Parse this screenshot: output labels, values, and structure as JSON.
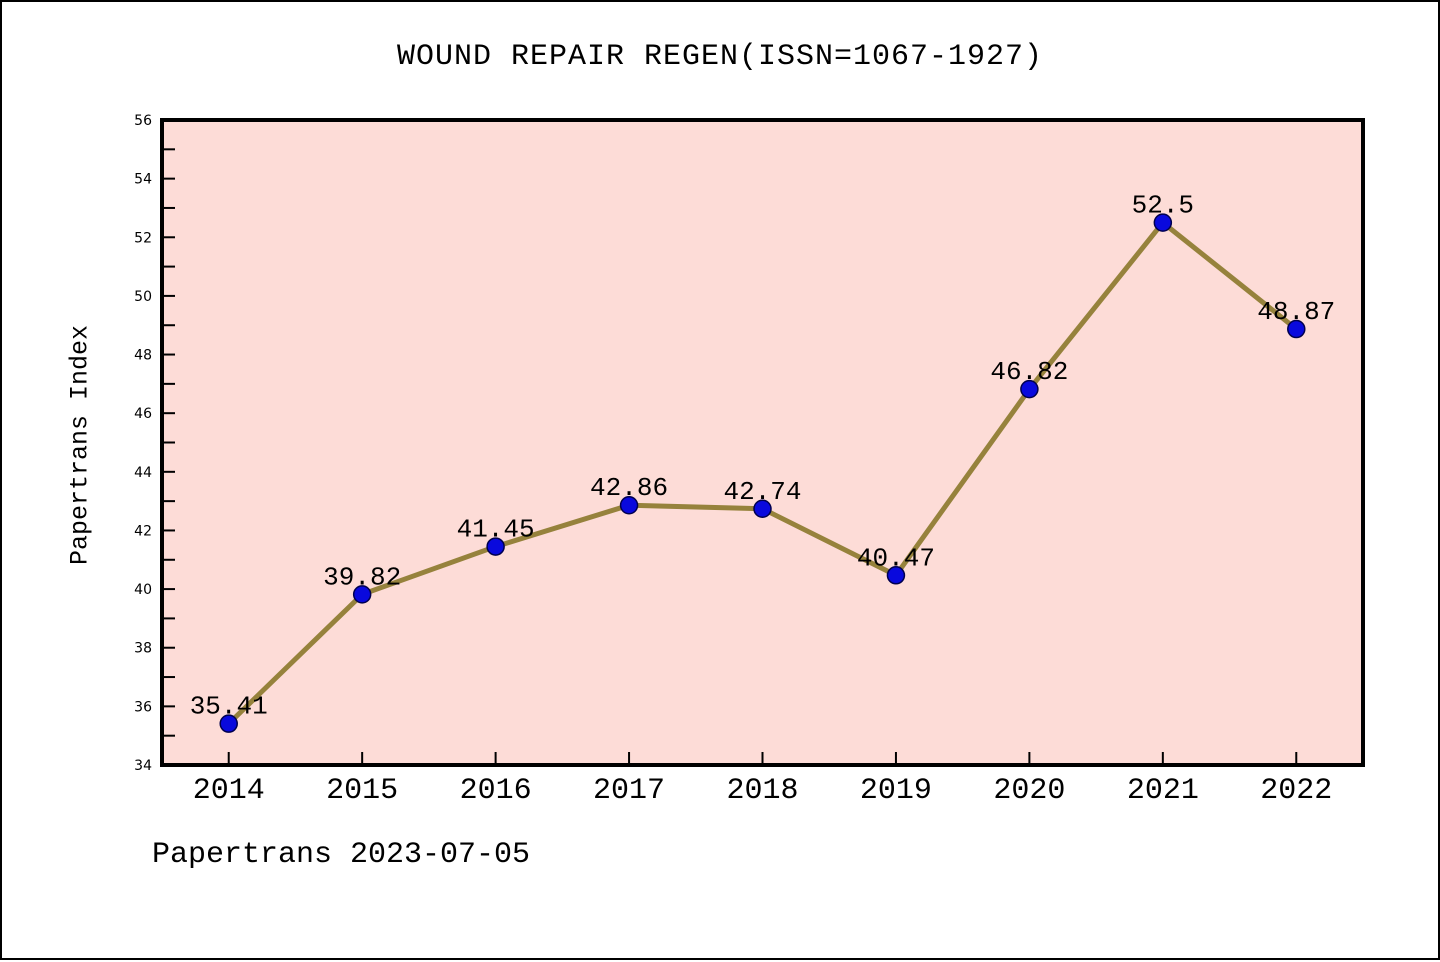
{
  "window": {
    "background": "#ffffff",
    "border_color": "#000000"
  },
  "chart_data": {
    "type": "line",
    "title": "WOUND REPAIR REGEN(ISSN=1067-1927)",
    "xlabel": "",
    "ylabel": "Papertrans Index",
    "categories": [
      "2014",
      "2015",
      "2016",
      "2017",
      "2018",
      "2019",
      "2020",
      "2021",
      "2022"
    ],
    "series": [
      {
        "name": "Papertrans Index",
        "values": [
          35.41,
          39.82,
          41.45,
          42.86,
          42.74,
          40.47,
          46.82,
          52.5,
          48.87
        ]
      }
    ],
    "point_labels": [
      "35.41",
      "39.82",
      "41.45",
      "42.86",
      "42.74",
      "40.47",
      "46.82",
      "52.5",
      "48.87"
    ],
    "ylim": [
      34,
      56
    ],
    "y_label_step": 2,
    "y_tick_step": 1,
    "grid": false,
    "legend": "none",
    "tick_direction": "in",
    "colors": {
      "plot_background": "#fddcd7",
      "line": "#96823c",
      "marker_fill": "#0909dd",
      "marker_edge": "#00004f",
      "axis": "#000000",
      "text": "#000000"
    }
  },
  "footer": {
    "text": "Papertrans 2023-07-05"
  }
}
